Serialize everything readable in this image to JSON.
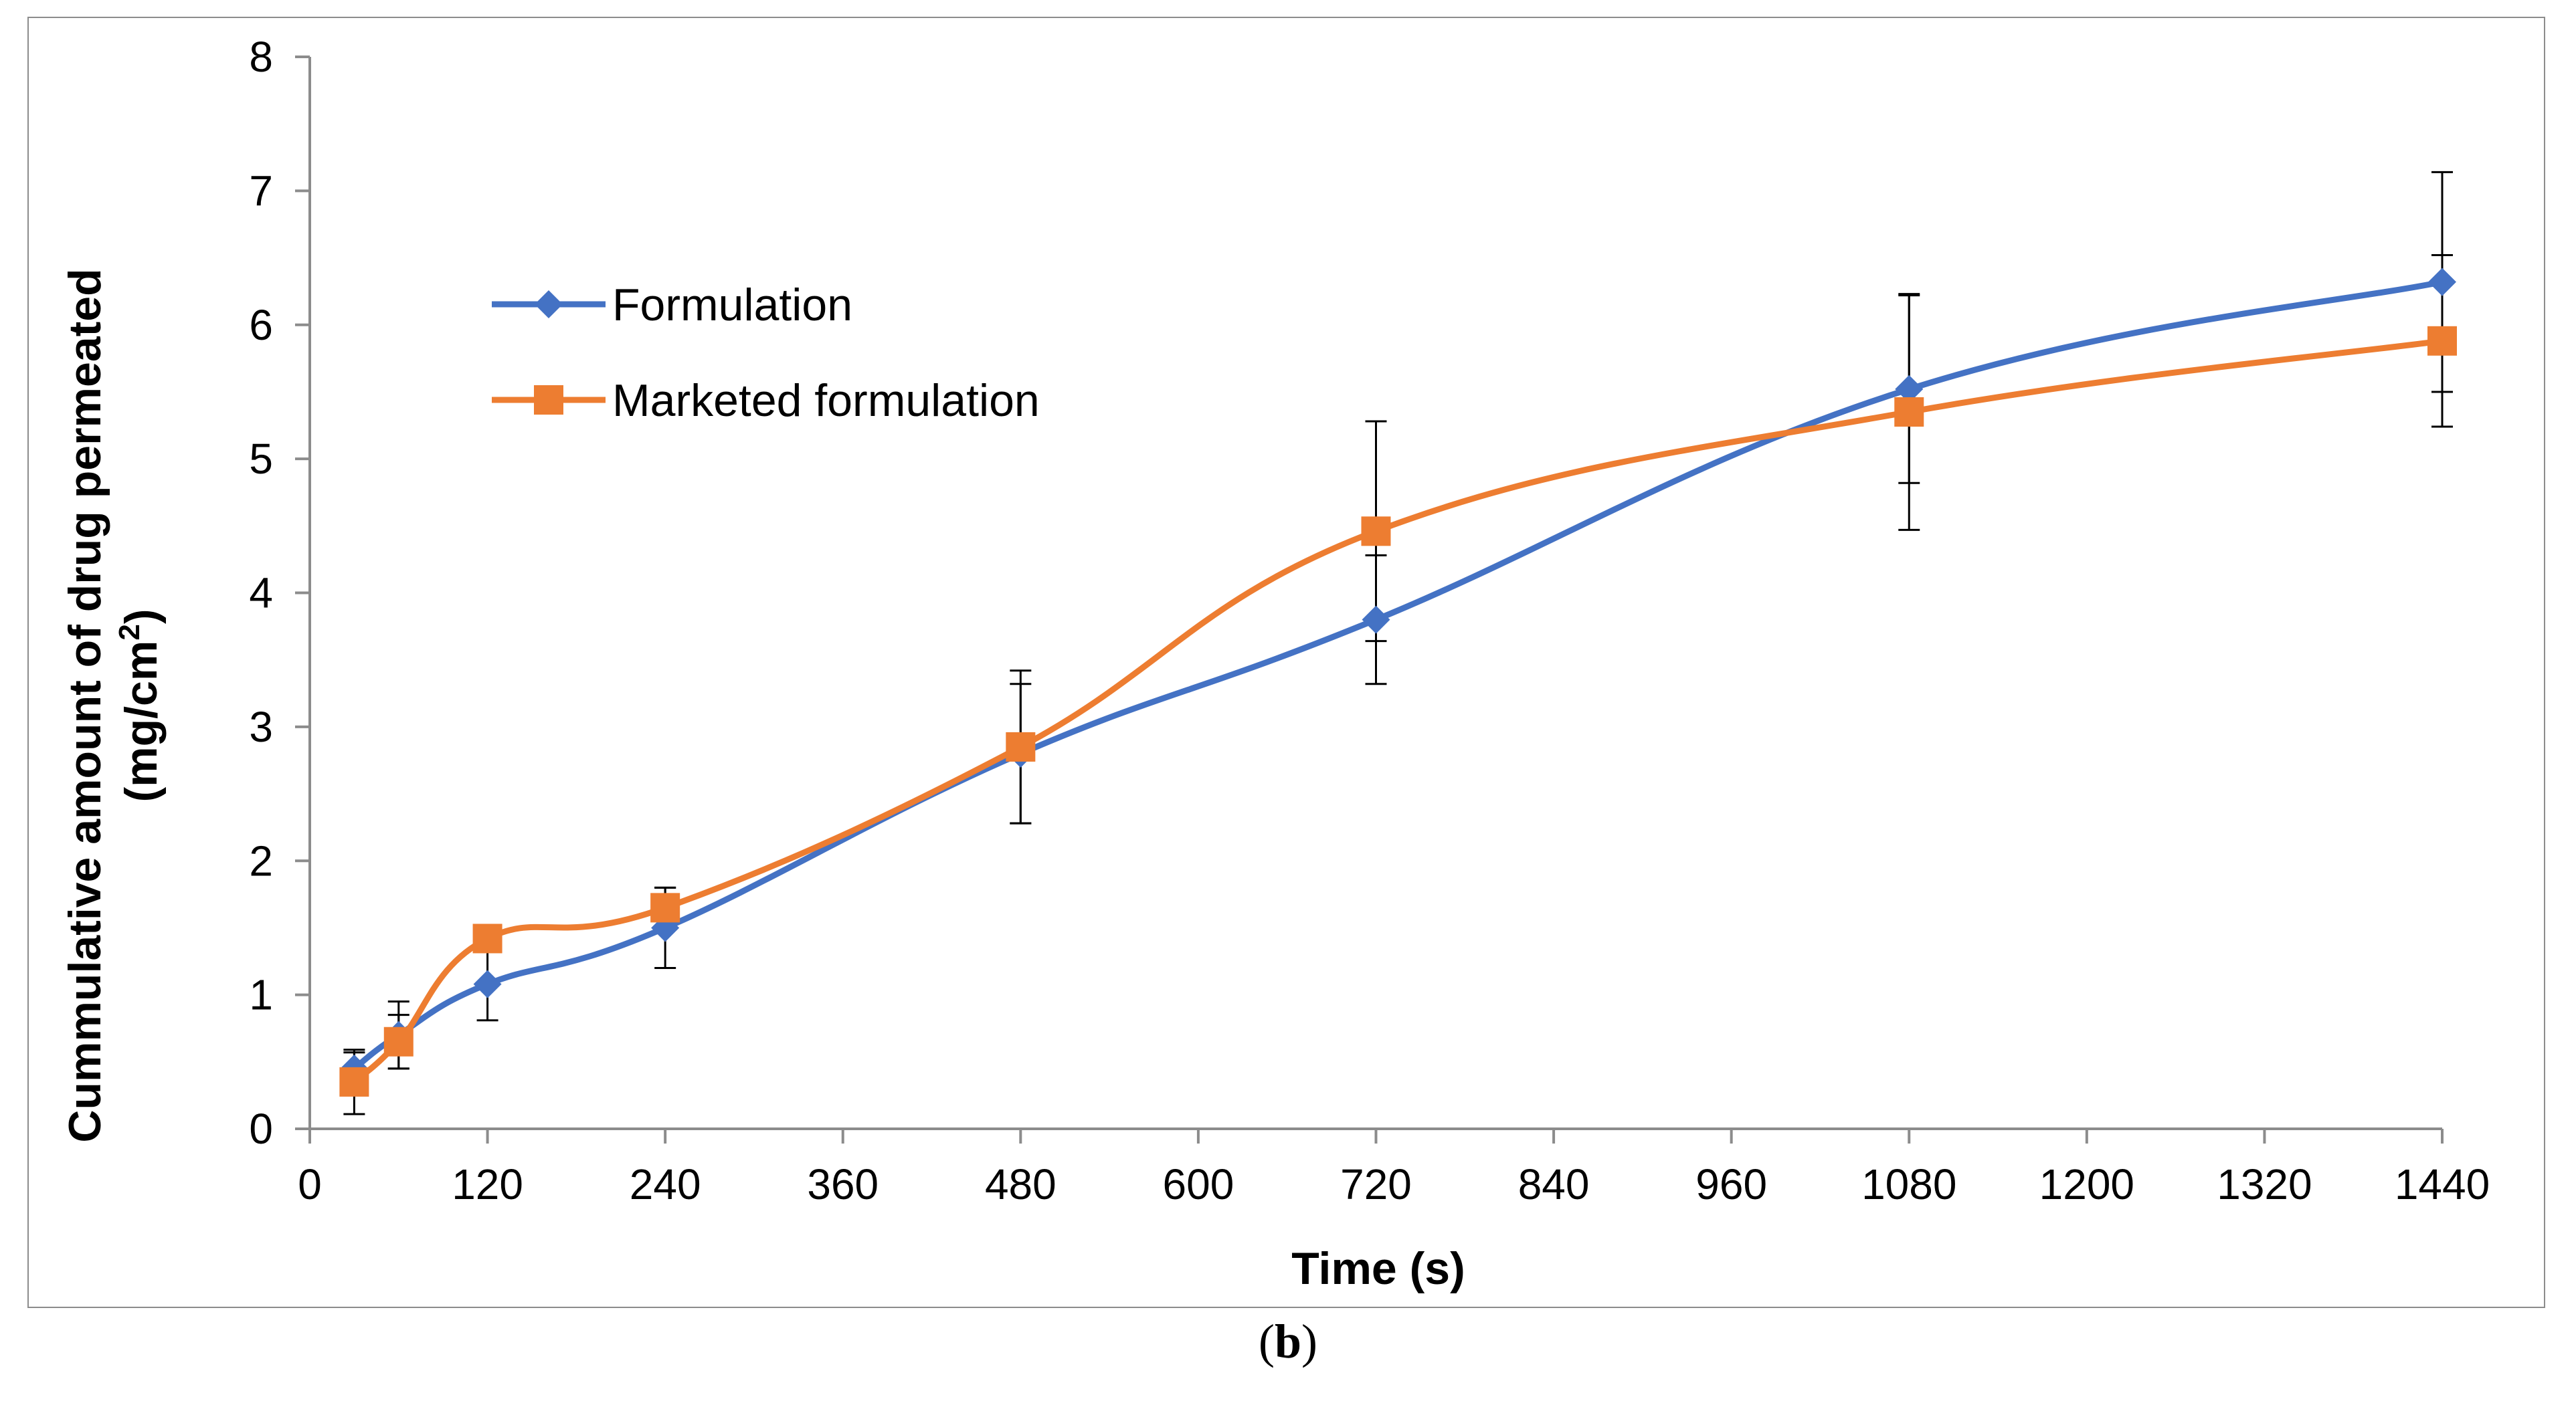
{
  "caption": {
    "open": "(",
    "letter": "b",
    "close": ")"
  },
  "chart_data": {
    "type": "line",
    "title": "",
    "xlabel": "Time (s)",
    "ylabel_line1": "Cummulative amount  of drug permeated",
    "ylabel_line2": "(mg/cm",
    "ylabel_sup": "2",
    "ylabel_close": ")",
    "xlim": [
      0,
      1440
    ],
    "ylim": [
      0,
      8
    ],
    "xticks": [
      0,
      120,
      240,
      360,
      480,
      600,
      720,
      840,
      960,
      1080,
      1200,
      1320,
      1440
    ],
    "yticks": [
      0,
      1,
      2,
      3,
      4,
      5,
      6,
      7,
      8
    ],
    "grid": false,
    "legend_position": "upper-left",
    "series": [
      {
        "name": "Formulation",
        "color": "#4472c4",
        "marker": "diamond",
        "x": [
          30,
          60,
          120,
          240,
          480,
          720,
          1080,
          1440
        ],
        "values": [
          0.45,
          0.7,
          1.08,
          1.5,
          2.8,
          3.8,
          5.52,
          6.32
        ],
        "errors": [
          0.12,
          0.25,
          0.27,
          0.3,
          0.52,
          0.48,
          0.7,
          0.82
        ]
      },
      {
        "name": "Marketed formulation",
        "color": "#ed7d31",
        "marker": "square",
        "x": [
          30,
          60,
          120,
          240,
          480,
          720,
          1080,
          1440
        ],
        "values": [
          0.35,
          0.65,
          1.42,
          1.65,
          2.85,
          4.46,
          5.35,
          5.88
        ],
        "errors": [
          0.24,
          0.2,
          0.1,
          0.15,
          0.57,
          0.82,
          0.88,
          0.64
        ]
      }
    ]
  }
}
